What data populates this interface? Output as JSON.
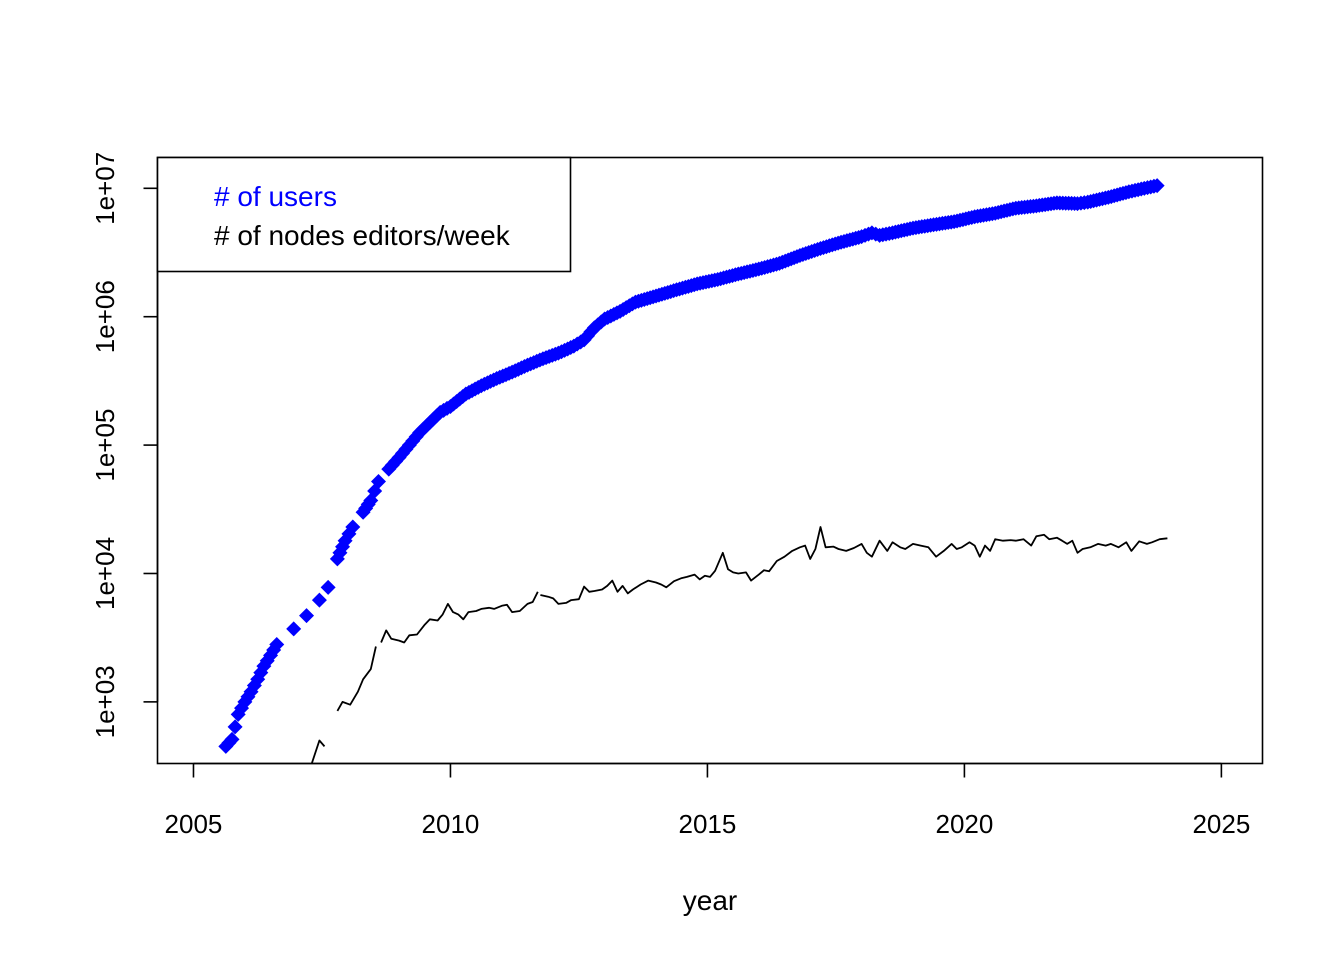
{
  "chart_data": {
    "type": "scatter",
    "title": "",
    "xlabel": "year",
    "ylabel": "",
    "xlim": [
      2004.3,
      2025.8
    ],
    "ylim_log10": [
      2.52,
      7.24
    ],
    "y_scale": "log",
    "grid": false,
    "legend_position": "top-left",
    "x_ticks": [
      2005,
      2010,
      2015,
      2020,
      2025
    ],
    "x_tick_labels": [
      "2005",
      "2010",
      "2015",
      "2020",
      "2025"
    ],
    "y_ticks": [
      1000,
      10000,
      100000,
      1000000,
      10000000
    ],
    "y_tick_labels": [
      "1e+03",
      "1e+04",
      "1e+05",
      "1e+06",
      "1e+07"
    ],
    "series": [
      {
        "name": "# of users",
        "color": "#0000ff",
        "marker": "diamond",
        "points": [
          [
            2005.63,
            450
          ],
          [
            2005.75,
            510
          ],
          [
            2005.87,
            800
          ],
          [
            2006.0,
            1000
          ],
          [
            2006.12,
            1200
          ],
          [
            2006.25,
            1500
          ],
          [
            2006.37,
            1900
          ],
          [
            2006.5,
            2300
          ],
          [
            2006.62,
            2800
          ],
          [
            2006.95,
            3700
          ],
          [
            2007.2,
            4700
          ],
          [
            2007.45,
            6200
          ],
          [
            2007.62,
            7800
          ],
          [
            2007.8,
            13000
          ],
          [
            2007.95,
            18000
          ],
          [
            2008.1,
            23000
          ],
          [
            2008.3,
            30000
          ],
          [
            2008.45,
            37000
          ],
          [
            2008.6,
            52000
          ],
          [
            2008.8,
            65000
          ],
          [
            2009.0,
            80000
          ],
          [
            2009.2,
            100000
          ],
          [
            2009.4,
            125000
          ],
          [
            2009.6,
            150000
          ],
          [
            2009.8,
            180000
          ],
          [
            2010.0,
            200000
          ],
          [
            2010.3,
            250000
          ],
          [
            2010.6,
            290000
          ],
          [
            2010.9,
            330000
          ],
          [
            2011.2,
            370000
          ],
          [
            2011.5,
            420000
          ],
          [
            2011.8,
            470000
          ],
          [
            2012.1,
            520000
          ],
          [
            2012.4,
            590000
          ],
          [
            2012.6,
            660000
          ],
          [
            2012.8,
            820000
          ],
          [
            2013.0,
            960000
          ],
          [
            2013.3,
            1100000
          ],
          [
            2013.6,
            1300000
          ],
          [
            2014.0,
            1450000
          ],
          [
            2014.4,
            1620000
          ],
          [
            2014.8,
            1800000
          ],
          [
            2015.2,
            1950000
          ],
          [
            2015.6,
            2150000
          ],
          [
            2016.0,
            2350000
          ],
          [
            2016.4,
            2600000
          ],
          [
            2016.8,
            3000000
          ],
          [
            2017.2,
            3400000
          ],
          [
            2017.6,
            3800000
          ],
          [
            2018.0,
            4200000
          ],
          [
            2018.2,
            4500000
          ],
          [
            2018.35,
            4300000
          ],
          [
            2018.6,
            4500000
          ],
          [
            2019.0,
            4900000
          ],
          [
            2019.4,
            5200000
          ],
          [
            2019.8,
            5500000
          ],
          [
            2020.2,
            6000000
          ],
          [
            2020.6,
            6400000
          ],
          [
            2021.0,
            7000000
          ],
          [
            2021.4,
            7300000
          ],
          [
            2021.8,
            7700000
          ],
          [
            2022.2,
            7600000
          ],
          [
            2022.4,
            7800000
          ],
          [
            2022.8,
            8500000
          ],
          [
            2023.2,
            9400000
          ],
          [
            2023.5,
            10000000
          ],
          [
            2023.75,
            10500000
          ]
        ]
      },
      {
        "name": "# of nodes editors/week",
        "color": "#000000",
        "marker": "line",
        "segments": [
          [
            [
              2007.3,
              330
            ],
            [
              2007.45,
              500
            ],
            [
              2007.55,
              450
            ]
          ],
          [
            [
              2007.8,
              850
            ],
            [
              2007.9,
              1000
            ],
            [
              2008.05,
              950
            ],
            [
              2008.2,
              1200
            ],
            [
              2008.3,
              1500
            ],
            [
              2008.45,
              1800
            ],
            [
              2008.55,
              2700
            ]
          ],
          [
            [
              2008.65,
              2900
            ],
            [
              2008.75,
              3600
            ],
            [
              2008.85,
              3100
            ],
            [
              2009.0,
              3000
            ],
            [
              2009.1,
              2900
            ],
            [
              2009.2,
              3300
            ],
            [
              2009.35,
              3350
            ],
            [
              2009.5,
              4000
            ],
            [
              2009.6,
              4400
            ],
            [
              2009.75,
              4300
            ],
            [
              2009.85,
              4800
            ],
            [
              2009.95,
              5800
            ],
            [
              2010.05,
              5000
            ],
            [
              2010.15,
              4800
            ],
            [
              2010.25,
              4400
            ],
            [
              2010.35,
              5000
            ],
            [
              2010.5,
              5100
            ],
            [
              2010.6,
              5300
            ],
            [
              2010.75,
              5400
            ],
            [
              2010.85,
              5300
            ],
            [
              2011.0,
              5600
            ],
            [
              2011.1,
              5700
            ],
            [
              2011.2,
              5000
            ],
            [
              2011.35,
              5100
            ],
            [
              2011.5,
              5800
            ],
            [
              2011.6,
              6000
            ],
            [
              2011.7,
              7200
            ]
          ],
          [
            [
              2011.75,
              6800
            ],
            [
              2011.9,
              6600
            ],
            [
              2012.0,
              6400
            ],
            [
              2012.1,
              5800
            ],
            [
              2012.25,
              5900
            ],
            [
              2012.35,
              6200
            ],
            [
              2012.5,
              6300
            ],
            [
              2012.6,
              7900
            ],
            [
              2012.7,
              7200
            ],
            [
              2012.8,
              7300
            ],
            [
              2012.95,
              7500
            ],
            [
              2013.05,
              8000
            ],
            [
              2013.15,
              8800
            ],
            [
              2013.25,
              7200
            ],
            [
              2013.35,
              8000
            ],
            [
              2013.45,
              7000
            ],
            [
              2013.55,
              7500
            ],
            [
              2013.7,
              8200
            ],
            [
              2013.85,
              8800
            ],
            [
              2014.0,
              8500
            ],
            [
              2014.1,
              8200
            ],
            [
              2014.2,
              7800
            ],
            [
              2014.35,
              8700
            ],
            [
              2014.5,
              9200
            ],
            [
              2014.6,
              9400
            ],
            [
              2014.75,
              9800
            ],
            [
              2014.85,
              9000
            ],
            [
              2014.95,
              9600
            ],
            [
              2015.05,
              9400
            ],
            [
              2015.15,
              10500
            ],
            [
              2015.3,
              14500
            ],
            [
              2015.4,
              10800
            ],
            [
              2015.5,
              10200
            ],
            [
              2015.6,
              10000
            ],
            [
              2015.75,
              10200
            ],
            [
              2015.85,
              8800
            ],
            [
              2016.0,
              9800
            ],
            [
              2016.1,
              10600
            ],
            [
              2016.2,
              10400
            ],
            [
              2016.35,
              12500
            ],
            [
              2016.5,
              13500
            ],
            [
              2016.65,
              15000
            ],
            [
              2016.8,
              16000
            ],
            [
              2016.9,
              16500
            ],
            [
              2017.0,
              13000
            ],
            [
              2017.1,
              15500
            ],
            [
              2017.2,
              23000
            ],
            [
              2017.3,
              16000
            ],
            [
              2017.45,
              16200
            ],
            [
              2017.55,
              15500
            ],
            [
              2017.7,
              15000
            ],
            [
              2017.85,
              15800
            ],
            [
              2018.0,
              17000
            ],
            [
              2018.1,
              14500
            ],
            [
              2018.2,
              13500
            ],
            [
              2018.35,
              18000
            ],
            [
              2018.5,
              15000
            ],
            [
              2018.6,
              17500
            ],
            [
              2018.75,
              16000
            ],
            [
              2018.85,
              15500
            ],
            [
              2019.0,
              17000
            ],
            [
              2019.15,
              16500
            ],
            [
              2019.3,
              16000
            ],
            [
              2019.45,
              13500
            ],
            [
              2019.6,
              15000
            ],
            [
              2019.75,
              17000
            ],
            [
              2019.85,
              15500
            ],
            [
              2019.95,
              16000
            ],
            [
              2020.1,
              17500
            ],
            [
              2020.2,
              16500
            ],
            [
              2020.3,
              13500
            ],
            [
              2020.4,
              16500
            ],
            [
              2020.5,
              15000
            ],
            [
              2020.6,
              18500
            ],
            [
              2020.75,
              18000
            ],
            [
              2020.9,
              18200
            ],
            [
              2021.0,
              18000
            ],
            [
              2021.15,
              18500
            ],
            [
              2021.3,
              16500
            ],
            [
              2021.4,
              19500
            ],
            [
              2021.55,
              20000
            ],
            [
              2021.65,
              18500
            ],
            [
              2021.8,
              19000
            ],
            [
              2021.9,
              18000
            ],
            [
              2022.0,
              17000
            ],
            [
              2022.1,
              18000
            ],
            [
              2022.2,
              14500
            ],
            [
              2022.3,
              15500
            ],
            [
              2022.45,
              16000
            ],
            [
              2022.6,
              17000
            ],
            [
              2022.75,
              16500
            ],
            [
              2022.85,
              17000
            ],
            [
              2023.0,
              16000
            ],
            [
              2023.15,
              17500
            ],
            [
              2023.25,
              15000
            ],
            [
              2023.4,
              17800
            ],
            [
              2023.55,
              17000
            ],
            [
              2023.65,
              17500
            ],
            [
              2023.8,
              18500
            ],
            [
              2023.95,
              18800
            ]
          ]
        ]
      }
    ]
  }
}
